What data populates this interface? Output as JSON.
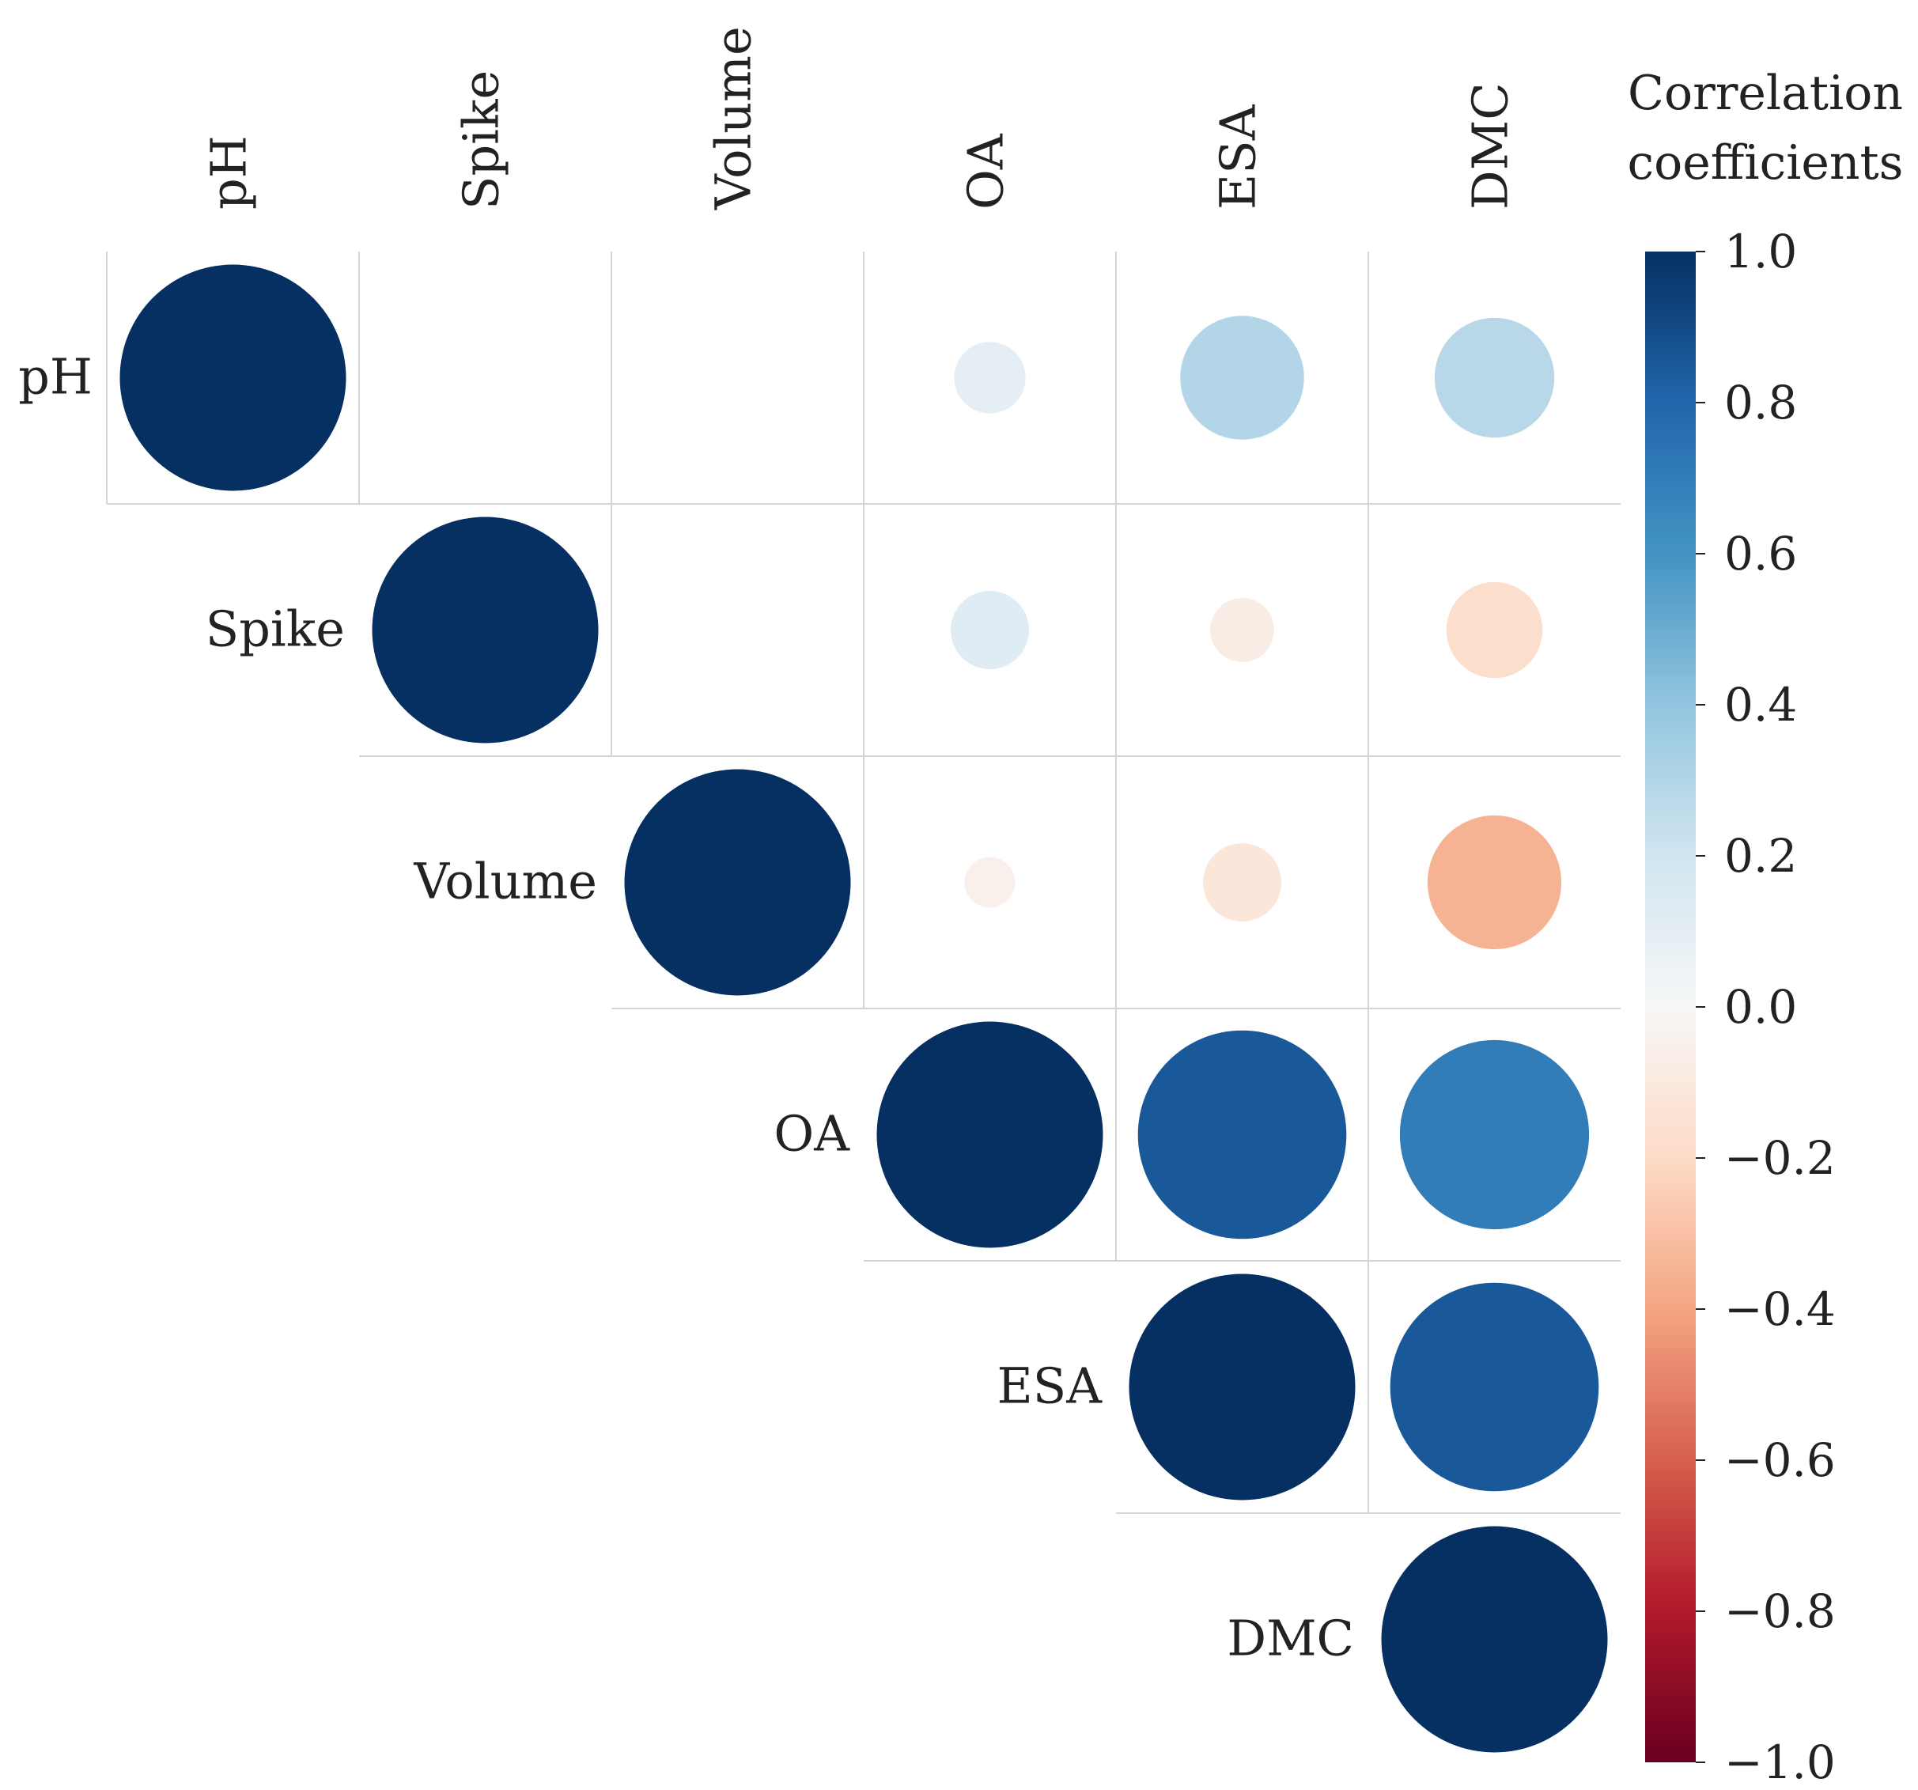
{
  "chart_data": {
    "type": "heatmap",
    "style": "correlogram-circles-upper-triangle",
    "title": "",
    "variables": [
      "pH",
      "Spike",
      "Volume",
      "OA",
      "ESA",
      "DMC"
    ],
    "matrix": [
      [
        1.0,
        0.0,
        0.0,
        0.1,
        0.3,
        0.28
      ],
      [
        0.0,
        1.0,
        0.0,
        0.12,
        -0.08,
        -0.18
      ],
      [
        0.0,
        0.0,
        1.0,
        -0.05,
        -0.12,
        -0.35
      ],
      [
        0.1,
        0.12,
        -0.05,
        1.0,
        0.85,
        0.7
      ],
      [
        0.3,
        -0.08,
        -0.12,
        0.85,
        1.0,
        0.85
      ],
      [
        0.28,
        -0.18,
        -0.35,
        0.7,
        0.85,
        1.0
      ]
    ],
    "colorbar": {
      "title_lines": [
        "Correlation",
        "coefficients"
      ],
      "range": [
        -1.0,
        1.0
      ],
      "ticks": [
        1.0,
        0.8,
        0.6,
        0.4,
        0.2,
        0.0,
        -0.2,
        -0.4,
        -0.6,
        -0.8,
        -1.0
      ],
      "tick_labels": [
        "1.0",
        "0.8",
        "0.6",
        "0.4",
        "0.2",
        "0.0",
        "−0.2",
        "−0.4",
        "−0.6",
        "−0.8",
        "−1.0"
      ],
      "colormap": "RdBu",
      "colors": [
        "#67001f",
        "#b2182b",
        "#d6604d",
        "#f4a582",
        "#fddbc7",
        "#f7f7f7",
        "#d1e5f0",
        "#92c5de",
        "#4393c3",
        "#2166ac",
        "#053061"
      ]
    }
  }
}
